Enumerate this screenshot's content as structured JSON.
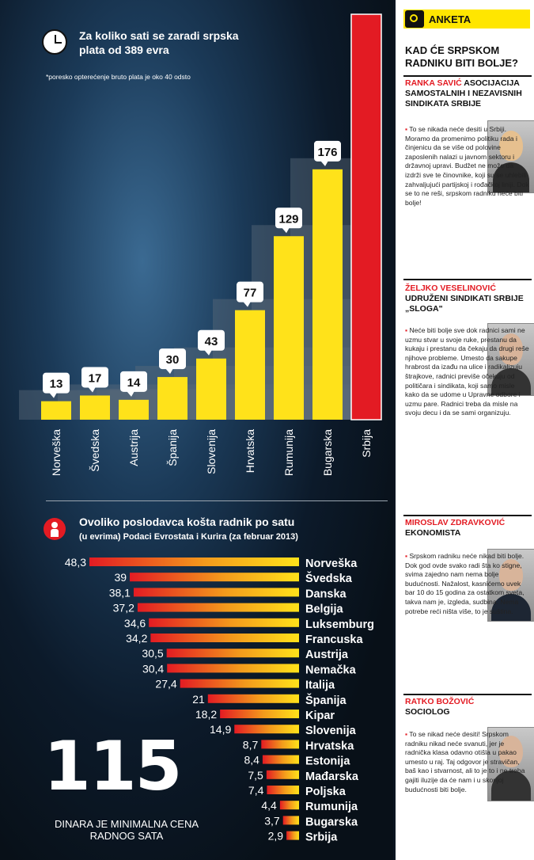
{
  "infographic": {
    "chart1_title": "Za koliko sati se zaradi srpska plata od 389 evra",
    "chart1_note": "*poresko opterećenje bruto plata je oko 40 odsto",
    "chart2_title": "Ovoliko poslodavca košta radnik po satu",
    "chart2_subtitle": "(u evrima) Podaci Evrostata i Kurira (za februar 2013)",
    "big_number": "115",
    "big_number_caption": "DINARA JE MINIMALNA CENA RADNOG SATA",
    "colors": {
      "yellow": "#ffe21a",
      "red": "#e31b23",
      "white": "#ffffff"
    },
    "icons": [
      "clock-icon",
      "person-icon"
    ]
  },
  "chart_data": [
    {
      "type": "bar",
      "categories": [
        "Norveška",
        "Švedska",
        "Austrija",
        "Španija",
        "Slovenija",
        "Hrvatska",
        "Rumunija",
        "Bugarska",
        "Srbija"
      ],
      "values": [
        13,
        17,
        14,
        30,
        43,
        77,
        129,
        176,
        285
      ],
      "value_labels": [
        "13",
        "17",
        "14",
        "30",
        "43",
        "77",
        "129",
        "176",
        ""
      ],
      "highlight_category": "Srbija",
      "bar_colors": {
        "default": "#ffe21a",
        "highlight": "#e31b23"
      },
      "ylim": [
        0,
        285
      ],
      "grid": false,
      "legend": "none"
    },
    {
      "type": "bar",
      "orientation": "horizontal",
      "categories": [
        "Norveška",
        "Švedska",
        "Danska",
        "Belgija",
        "Luksemburg",
        "Francuska",
        "Austrija",
        "Nemačka",
        "Italija",
        "Španija",
        "Kipar",
        "Slovenija",
        "Hrvatska",
        "Estonija",
        "Mađarska",
        "Poljska",
        "Rumunija",
        "Bugarska",
        "Srbija"
      ],
      "values": [
        48.3,
        39,
        38.1,
        37.2,
        34.6,
        34.2,
        30.5,
        30.4,
        27.4,
        21,
        18.2,
        14.9,
        8.7,
        8.4,
        7.5,
        7.4,
        4.4,
        3.7,
        2.9
      ],
      "value_labels": [
        "48,3",
        "39",
        "38,1",
        "37,2",
        "34,6",
        "34,2",
        "30,5",
        "30,4",
        "27,4",
        "21",
        "18,2",
        "14,9",
        "8,7",
        "8,4",
        "7,5",
        "7,4",
        "4,4",
        "3,7",
        "2,9"
      ],
      "gradient": [
        "#e31b23",
        "#ffe21a"
      ],
      "xlim": [
        0,
        50
      ],
      "grid": false,
      "legend": "none"
    }
  ],
  "sidebar": {
    "label": "ANKETA",
    "question": "KAD ĆE SRPSKOM RADNIKU BITI BOLJE?",
    "people": [
      {
        "name": "RANKA SAVIĆ",
        "org": "ASOCIJACIJA SAMOSTALNIH I NEZAVISNIH SINDIKATA SRBIJE",
        "text": "To se nikada neće desiti u Srbiji. Moramo da promenimo politiku rada i činjenicu da se više od polovine zaposlenih nalazi u javnom sektoru i državnoj upravi. Budžet ne može da izdrži sve te činovnike, koji su se uhlebili zahvaljujući partijskoj i rođačkoj liniji. Dok se to ne reši, srpskom radniku neće biti bolje!"
      },
      {
        "name": "ŽELJKO VESELINOVIĆ",
        "org": "UDRUŽENI SINDIKATI SRBIJE „SLOGA\"",
        "text": "Neće biti bolje sve dok radnici sami ne uzmu stvar u svoje ruke, prestanu da kukaju i prestanu da čekaju da drugi reše njihove probleme. Umesto da sakupe hrabrost da izađu na ulice i radikalizuju štrajkove, radnici previše očekuju od političara i sindikata, koji samo misle kako da se udome u Upravne odbore i uzmu pare. Radnici treba da misle na svoju decu i da se sami organizuju."
      },
      {
        "name": "MIROSLAV ZDRAVKOVIĆ",
        "org": "EKONOMISTA",
        "text": "Srpskom radniku neće nikad biti bolje. Dok god ovde svako radi šta ko stigne, svima zajedno nam nema bolje budućnosti. Nažalost, kasnićemo uvek bar 10 do 15 godina za ostatkom sveta, takva nam je, izgleda, sudbina. Nema potrebe reći ništa više, to je suština."
      },
      {
        "name": "RATKO BOŽOVIĆ",
        "org": "SOCIOLOG",
        "text": "To se nikad neće desiti! Srpskom radniku nikad neće svanuti, jer je radnička klasa odavno otišla u pakao umesto u raj. Taj odgovor je stravičan, baš kao i stvarnost, ali to je to i ne treba gajiti iluzije da će nam i u skorijoj budućnosti biti bolje."
      }
    ]
  }
}
